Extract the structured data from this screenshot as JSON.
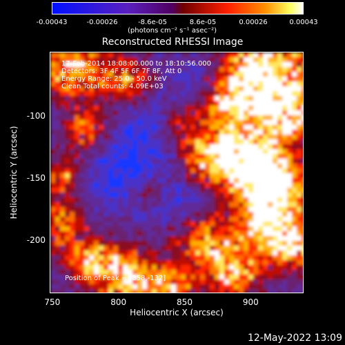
{
  "chart_data": {
    "type": "heatmap",
    "title": "Reconstructed RHESSI Image",
    "xlabel": "Heliocentric X (arcsec)",
    "ylabel": "Heliocentric Y (arcsec)",
    "xlim": [
      748,
      940
    ],
    "ylim": [
      -243,
      -48
    ],
    "x_ticks": [
      "750",
      "800",
      "850",
      "900"
    ],
    "y_ticks": [
      "-100",
      "-150",
      "-200"
    ],
    "colorbar": {
      "ticks": [
        "-0.00043",
        "-0.00026",
        "-8.6e-05",
        "8.6e-05",
        "0.00026",
        "0.00043"
      ],
      "unit": "(photons cm⁻² s⁻¹ asec⁻²)",
      "range": [
        -0.00043,
        0.00043
      ]
    },
    "annotations": [
      "17-Feb-2014 18:08:00.000 to 18:10:56.000",
      "Detectors: 3F 4F 5F 6F 7F 8F, Att 0",
      "Energy Range: 25.0 - 50.0 keV",
      "Clean     Total counts: 4.09E+03"
    ],
    "peak_label": "Position of Peak = [858,-132]"
  },
  "colors": {
    "background": "#000000",
    "low": "#0000ff",
    "mid": "#800080",
    "high": "#ff0000",
    "peak": "#ffffff"
  },
  "footer": {
    "timestamp": "12-May-2022 13:09"
  }
}
